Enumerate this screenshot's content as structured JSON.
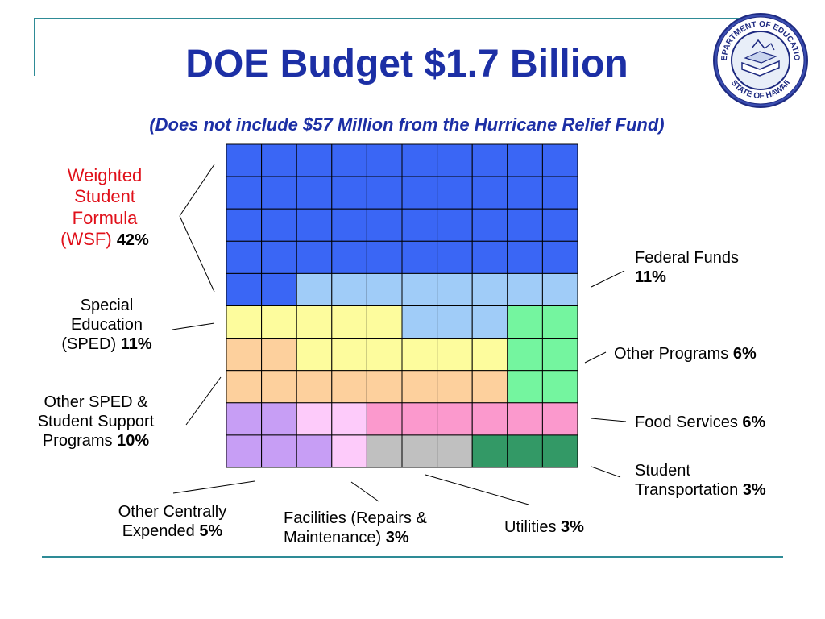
{
  "title": "DOE Budget $1.7 Billion",
  "subtitle": "(Does not include $57 Million from the Hurricane Relief Fund)",
  "logo_text": {
    "top": "DEPARTMENT OF EDUCATION",
    "bottom": "STATE OF HAWAII"
  },
  "colors": {
    "wsf": "#3a66f5",
    "federal": "#a0ccf8",
    "sped": "#fdfc9d",
    "other_programs": "#74f59f",
    "other_sped": "#fdd09d",
    "centrally_expended": "#c79ef5",
    "facilities": "#fdcbfa",
    "food_services": "#fb99cd",
    "utilities": "#c0c0c0",
    "transportation": "#339966",
    "wsf_label": "#e0101a"
  },
  "labels": {
    "wsf": {
      "name": "Weighted Student Formula (WSF)",
      "line1": "Weighted",
      "line2": "Student",
      "line3": "Formula",
      "line4": "(WSF)",
      "pct": "42%"
    },
    "sped": {
      "line1": "Special",
      "line2": "Education",
      "line3": "(SPED)",
      "pct": "11%"
    },
    "other_sped": {
      "line1": "Other SPED &",
      "line2": "Student Support",
      "line3": "Programs",
      "pct": "10%"
    },
    "centrally": {
      "line1": "Other Centrally",
      "line2": "Expended",
      "pct": "5%"
    },
    "facilities": {
      "line1": "Facilities (Repairs &",
      "line2": "Maintenance)",
      "pct": "3%"
    },
    "utilities": {
      "line1": "Utilities",
      "pct": "3%"
    },
    "federal": {
      "line1": "Federal Funds",
      "pct": "11%"
    },
    "other_programs": {
      "line1": "Other Programs",
      "pct": "6%"
    },
    "food": {
      "line1": "Food Services",
      "pct": "6%"
    },
    "transportation": {
      "line1": "Student",
      "line2": "Transportation",
      "pct": "3%"
    }
  },
  "chart_data": {
    "type": "waffle",
    "rows": 10,
    "cols": 10,
    "total": "$1.7 Billion",
    "categories": [
      {
        "key": "wsf",
        "name": "Weighted Student Formula (WSF)",
        "value": 42
      },
      {
        "key": "federal",
        "name": "Federal Funds",
        "value": 11
      },
      {
        "key": "sped",
        "name": "Special Education (SPED)",
        "value": 11
      },
      {
        "key": "other_programs",
        "name": "Other Programs",
        "value": 6
      },
      {
        "key": "other_sped",
        "name": "Other SPED & Student Support Programs",
        "value": 10
      },
      {
        "key": "centrally_expended",
        "name": "Other Centrally Expended",
        "value": 5
      },
      {
        "key": "facilities",
        "name": "Facilities (Repairs & Maintenance)",
        "value": 3
      },
      {
        "key": "food_services",
        "name": "Food Services",
        "value": 6
      },
      {
        "key": "utilities",
        "name": "Utilities",
        "value": 3
      },
      {
        "key": "transportation",
        "name": "Student Transportation",
        "value": 3
      }
    ],
    "grid": [
      [
        "wsf",
        "wsf",
        "wsf",
        "wsf",
        "wsf",
        "wsf",
        "wsf",
        "wsf",
        "wsf",
        "wsf"
      ],
      [
        "wsf",
        "wsf",
        "wsf",
        "wsf",
        "wsf",
        "wsf",
        "wsf",
        "wsf",
        "wsf",
        "wsf"
      ],
      [
        "wsf",
        "wsf",
        "wsf",
        "wsf",
        "wsf",
        "wsf",
        "wsf",
        "wsf",
        "wsf",
        "wsf"
      ],
      [
        "wsf",
        "wsf",
        "wsf",
        "wsf",
        "wsf",
        "wsf",
        "wsf",
        "wsf",
        "wsf",
        "wsf"
      ],
      [
        "wsf",
        "wsf",
        "federal",
        "federal",
        "federal",
        "federal",
        "federal",
        "federal",
        "federal",
        "federal"
      ],
      [
        "sped",
        "sped",
        "sped",
        "sped",
        "sped",
        "federal",
        "federal",
        "federal",
        "other_programs",
        "other_programs"
      ],
      [
        "other_sped",
        "other_sped",
        "sped",
        "sped",
        "sped",
        "sped",
        "sped",
        "sped",
        "other_programs",
        "other_programs"
      ],
      [
        "other_sped",
        "other_sped",
        "other_sped",
        "other_sped",
        "other_sped",
        "other_sped",
        "other_sped",
        "other_sped",
        "other_programs",
        "other_programs"
      ],
      [
        "centrally_expended",
        "centrally_expended",
        "facilities",
        "facilities",
        "food_services",
        "food_services",
        "food_services",
        "food_services",
        "food_services",
        "food_services"
      ],
      [
        "centrally_expended",
        "centrally_expended",
        "centrally_expended",
        "facilities",
        "utilities",
        "utilities",
        "utilities",
        "transportation",
        "transportation",
        "transportation"
      ]
    ]
  }
}
